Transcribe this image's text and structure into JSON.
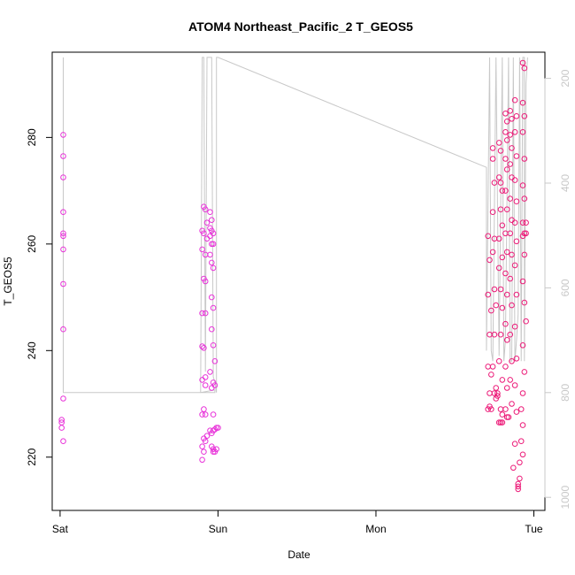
{
  "chart_data": {
    "type": "scatter",
    "title": "ATOM4 Northeast_Pacific_2 T_GEOS5",
    "xlabel": "Date",
    "ylabel": "T_GEOS5",
    "x_ticks": [
      "Sat",
      "Sun",
      "Mon",
      "Tue"
    ],
    "x_range_days": [
      -0.05,
      3.07
    ],
    "y_ticks": [
      220,
      240,
      260,
      280
    ],
    "ylim": [
      210,
      296
    ],
    "y2_ticks": [
      200,
      400,
      600,
      800,
      1000
    ],
    "y2_reversed": true,
    "y2lim": [
      1025,
      150
    ],
    "grid": false,
    "colors": {
      "series_early": "#e833d9",
      "series_late": "#ec1a78",
      "pressure_line": "#c8c8c8",
      "axis": "#000000",
      "right_axis": "#c8c8c8"
    },
    "series": [
      {
        "values": [
          [
            0.02,
            280.5
          ],
          [
            0.02,
            276.5
          ],
          [
            0.02,
            272.5
          ],
          [
            0.02,
            266.0
          ],
          [
            0.02,
            262.0
          ],
          [
            0.02,
            261.5
          ],
          [
            0.02,
            259.0
          ],
          [
            0.02,
            252.5
          ],
          [
            0.02,
            244.0
          ],
          [
            0.02,
            231.0
          ],
          [
            0.01,
            227.0
          ],
          [
            0.01,
            226.5
          ],
          [
            0.01,
            225.5
          ],
          [
            0.02,
            223.0
          ],
          [
            0.91,
            267.0
          ],
          [
            0.92,
            266.5
          ],
          [
            0.93,
            264.0
          ],
          [
            0.9,
            262.5
          ],
          [
            0.91,
            262.0
          ],
          [
            0.93,
            261.0
          ],
          [
            0.9,
            259.0
          ],
          [
            0.92,
            258.0
          ],
          [
            0.91,
            253.5
          ],
          [
            0.92,
            253.0
          ],
          [
            0.9,
            247.0
          ],
          [
            0.92,
            247.0
          ],
          [
            0.9,
            240.8
          ],
          [
            0.91,
            240.5
          ],
          [
            0.92,
            235.0
          ],
          [
            0.9,
            234.5
          ],
          [
            0.92,
            233.5
          ],
          [
            0.91,
            229.0
          ],
          [
            0.92,
            228.0
          ],
          [
            0.9,
            228.0
          ],
          [
            0.91,
            223.5
          ],
          [
            0.93,
            224.0
          ],
          [
            0.92,
            223.0
          ],
          [
            0.9,
            222.0
          ],
          [
            0.9,
            219.5
          ],
          [
            0.91,
            221.0
          ],
          [
            0.95,
            266.0
          ],
          [
            0.96,
            264.5
          ],
          [
            0.95,
            263.0
          ],
          [
            0.96,
            262.5
          ],
          [
            0.97,
            262.0
          ],
          [
            0.95,
            261.5
          ],
          [
            0.96,
            260.0
          ],
          [
            0.97,
            260.0
          ],
          [
            0.95,
            258.0
          ],
          [
            0.96,
            256.5
          ],
          [
            0.97,
            255.5
          ],
          [
            0.96,
            250.0
          ],
          [
            0.97,
            248.0
          ],
          [
            0.96,
            244.0
          ],
          [
            0.97,
            241.0
          ],
          [
            0.98,
            238.0
          ],
          [
            0.95,
            236.0
          ],
          [
            0.97,
            234.0
          ],
          [
            0.98,
            233.5
          ],
          [
            0.96,
            233.0
          ],
          [
            0.97,
            228.0
          ],
          [
            0.95,
            225.0
          ],
          [
            0.96,
            224.5
          ],
          [
            0.97,
            225.0
          ],
          [
            0.98,
            225.2
          ],
          [
            0.99,
            225.5
          ],
          [
            1.0,
            225.5
          ],
          [
            0.96,
            222.0
          ],
          [
            0.97,
            221.5
          ],
          [
            0.98,
            221.0
          ],
          [
            0.97,
            221.0
          ],
          [
            0.99,
            221.5
          ]
        ]
      },
      {
        "values": [
          [
            2.71,
            261.5
          ],
          [
            2.72,
            257.0
          ],
          [
            2.71,
            250.5
          ],
          [
            2.73,
            247.5
          ],
          [
            2.72,
            243.0
          ],
          [
            2.71,
            237.0
          ],
          [
            2.73,
            235.5
          ],
          [
            2.72,
            232.0
          ],
          [
            2.72,
            229.5
          ],
          [
            2.71,
            229.0
          ],
          [
            2.73,
            229.0
          ],
          [
            2.74,
            278.0
          ],
          [
            2.74,
            276.0
          ],
          [
            2.75,
            271.5
          ],
          [
            2.74,
            266.0
          ],
          [
            2.75,
            261.0
          ],
          [
            2.74,
            258.5
          ],
          [
            2.75,
            251.5
          ],
          [
            2.76,
            248.5
          ],
          [
            2.75,
            243.0
          ],
          [
            2.74,
            237.0
          ],
          [
            2.76,
            233.0
          ],
          [
            2.75,
            232.0
          ],
          [
            2.77,
            232.0
          ],
          [
            2.76,
            231.0
          ],
          [
            2.77,
            231.5
          ],
          [
            2.78,
            279.0
          ],
          [
            2.79,
            277.5
          ],
          [
            2.78,
            272.5
          ],
          [
            2.79,
            271.5
          ],
          [
            2.8,
            270.0
          ],
          [
            2.79,
            266.5
          ],
          [
            2.8,
            263.5
          ],
          [
            2.78,
            261.0
          ],
          [
            2.8,
            257.5
          ],
          [
            2.78,
            255.5
          ],
          [
            2.79,
            251.5
          ],
          [
            2.8,
            248.0
          ],
          [
            2.79,
            243.0
          ],
          [
            2.78,
            238.0
          ],
          [
            2.8,
            234.5
          ],
          [
            2.79,
            229.0
          ],
          [
            2.8,
            228.0
          ],
          [
            2.78,
            226.5
          ],
          [
            2.79,
            226.5
          ],
          [
            2.8,
            226.5
          ],
          [
            2.82,
            284.5
          ],
          [
            2.83,
            283.0
          ],
          [
            2.82,
            281.0
          ],
          [
            2.83,
            279.5
          ],
          [
            2.82,
            276.0
          ],
          [
            2.83,
            274.0
          ],
          [
            2.82,
            270.0
          ],
          [
            2.83,
            266.5
          ],
          [
            2.82,
            262.0
          ],
          [
            2.83,
            258.5
          ],
          [
            2.82,
            254.5
          ],
          [
            2.83,
            250.5
          ],
          [
            2.82,
            245.0
          ],
          [
            2.83,
            242.0
          ],
          [
            2.82,
            237.0
          ],
          [
            2.83,
            233.0
          ],
          [
            2.82,
            229.0
          ],
          [
            2.83,
            227.5
          ],
          [
            2.84,
            227.5
          ],
          [
            2.85,
            285.0
          ],
          [
            2.86,
            283.5
          ],
          [
            2.85,
            280.5
          ],
          [
            2.86,
            278.0
          ],
          [
            2.85,
            275.0
          ],
          [
            2.86,
            272.5
          ],
          [
            2.85,
            268.5
          ],
          [
            2.86,
            264.5
          ],
          [
            2.85,
            262.0
          ],
          [
            2.86,
            258.0
          ],
          [
            2.85,
            253.5
          ],
          [
            2.86,
            248.5
          ],
          [
            2.85,
            243.0
          ],
          [
            2.86,
            238.0
          ],
          [
            2.85,
            234.5
          ],
          [
            2.86,
            230.0
          ],
          [
            2.88,
            287.0
          ],
          [
            2.89,
            284.0
          ],
          [
            2.88,
            281.0
          ],
          [
            2.89,
            276.5
          ],
          [
            2.88,
            272.0
          ],
          [
            2.89,
            268.0
          ],
          [
            2.88,
            264.0
          ],
          [
            2.89,
            260.5
          ],
          [
            2.88,
            256.0
          ],
          [
            2.89,
            250.5
          ],
          [
            2.88,
            244.5
          ],
          [
            2.89,
            238.5
          ],
          [
            2.88,
            233.5
          ],
          [
            2.89,
            228.5
          ],
          [
            2.88,
            222.5
          ],
          [
            2.87,
            218.0
          ],
          [
            2.9,
            215.0
          ],
          [
            2.9,
            214.5
          ],
          [
            2.9,
            214.0
          ],
          [
            2.91,
            216.0
          ],
          [
            2.91,
            219.0
          ],
          [
            2.93,
            294.0
          ],
          [
            2.94,
            293.0
          ],
          [
            2.93,
            286.5
          ],
          [
            2.94,
            284.0
          ],
          [
            2.93,
            281.0
          ],
          [
            2.94,
            276.0
          ],
          [
            2.93,
            271.0
          ],
          [
            2.94,
            268.5
          ],
          [
            2.93,
            264.0
          ],
          [
            2.94,
            262.0
          ],
          [
            2.93,
            261.5
          ],
          [
            2.94,
            258.0
          ],
          [
            2.93,
            253.0
          ],
          [
            2.94,
            249.0
          ],
          [
            2.95,
            245.5
          ],
          [
            2.93,
            241.0
          ],
          [
            2.94,
            236.0
          ],
          [
            2.93,
            232.0
          ],
          [
            2.92,
            229.0
          ],
          [
            2.93,
            226.0
          ],
          [
            2.92,
            223.0
          ],
          [
            2.93,
            220.5
          ],
          [
            2.95,
            264.0
          ],
          [
            2.95,
            262.0
          ]
        ]
      }
    ],
    "pressure_line": [
      [
        0.02,
        160
      ],
      [
        0.02,
        160
      ],
      [
        0.02,
        170
      ],
      [
        0.02,
        800
      ],
      [
        0.98,
        800
      ],
      [
        0.98,
        795
      ],
      [
        0.89,
        800
      ],
      [
        0.9,
        160
      ],
      [
        0.9,
        160
      ],
      [
        0.91,
        160
      ],
      [
        0.91,
        170
      ],
      [
        0.92,
        760
      ],
      [
        0.93,
        160
      ],
      [
        0.94,
        160
      ],
      [
        0.95,
        160
      ],
      [
        0.96,
        160
      ],
      [
        0.97,
        770
      ],
      [
        0.98,
        780
      ],
      [
        0.99,
        800
      ],
      [
        0.99,
        160
      ],
      [
        0.99,
        160
      ],
      [
        1.0,
        160
      ],
      [
        2.7,
        370
      ],
      [
        2.7,
        720
      ],
      [
        2.72,
        160
      ],
      [
        2.73,
        720
      ],
      [
        2.74,
        740
      ],
      [
        2.76,
        160
      ],
      [
        2.78,
        730
      ],
      [
        2.8,
        160
      ],
      [
        2.81,
        740
      ],
      [
        2.82,
        700
      ],
      [
        2.84,
        160
      ],
      [
        2.85,
        740
      ],
      [
        2.86,
        740
      ],
      [
        2.87,
        160
      ],
      [
        2.88,
        740
      ],
      [
        2.89,
        700
      ],
      [
        2.9,
        650
      ],
      [
        2.91,
        160
      ],
      [
        2.92,
        740
      ],
      [
        2.93,
        160
      ],
      [
        2.94,
        160
      ],
      [
        2.94,
        740
      ],
      [
        2.95,
        210
      ],
      [
        2.96,
        160
      ]
    ]
  }
}
